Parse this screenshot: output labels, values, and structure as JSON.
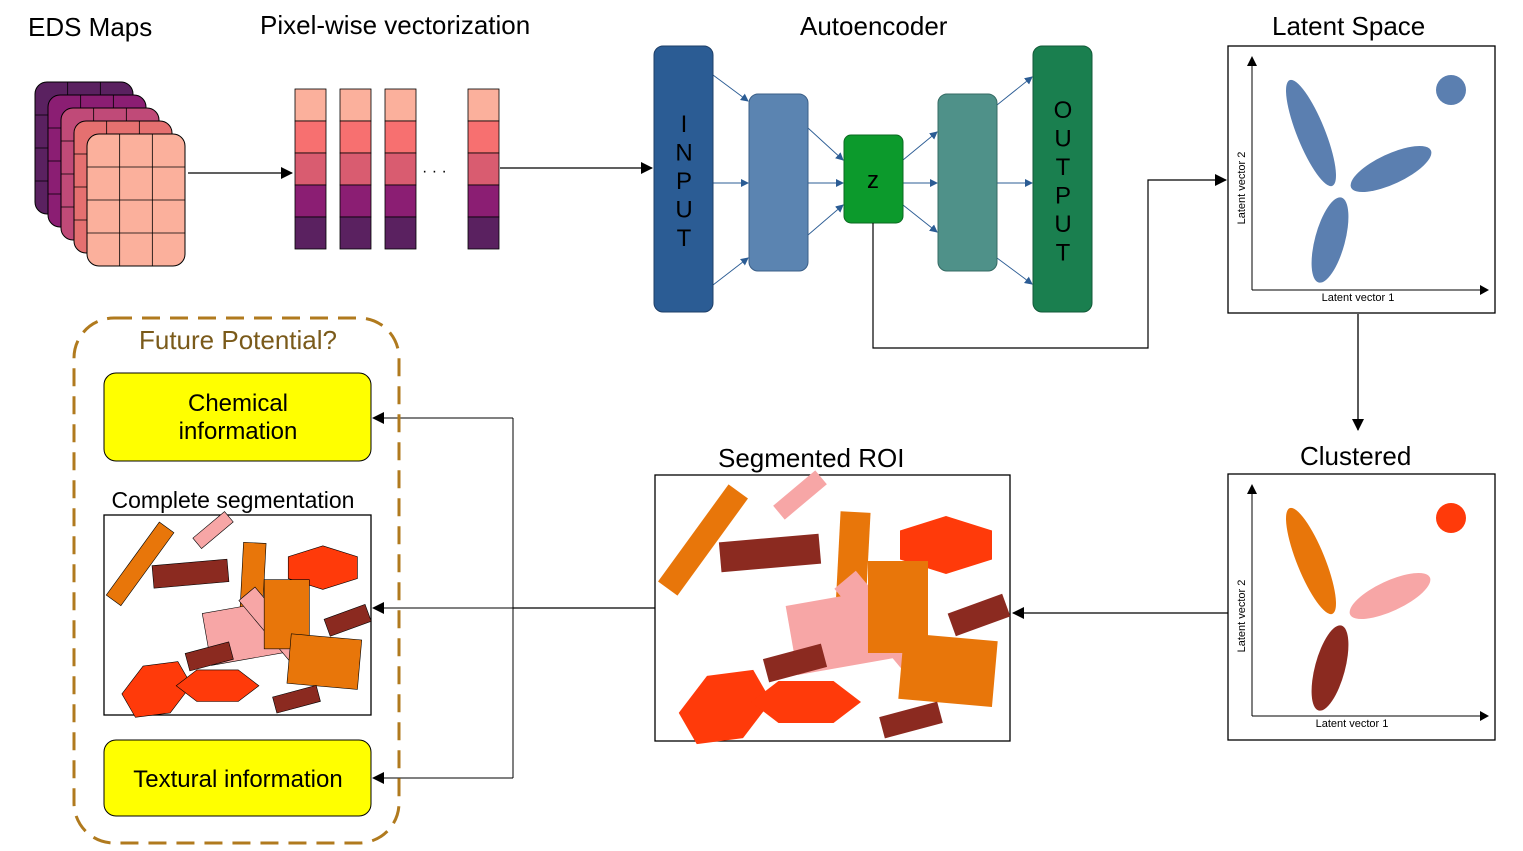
{
  "labels": {
    "eds_maps": "EDS Maps",
    "pixel_vectorization": "Pixel-wise vectorization",
    "autoencoder": "Autoencoder",
    "latent_space": "Latent Space",
    "clustered": "Clustered",
    "segmented_roi": "Segmented ROI",
    "future_potential": "Future Potential?",
    "complete_segmentation": "Complete segmentation",
    "ellipsis": "· · ·"
  },
  "autoencoder": {
    "input_letters": [
      "I",
      "N",
      "P",
      "U",
      "T"
    ],
    "output_letters": [
      "O",
      "U",
      "T",
      "P",
      "U",
      "T"
    ],
    "z_label": "z"
  },
  "plots": {
    "latent": {
      "xlabel": "Latent vector 1",
      "ylabel": "Latent vector 2"
    },
    "clustered": {
      "xlabel": "Latent vector 1",
      "ylabel": "Latent vector 2"
    }
  },
  "future_boxes": {
    "chemical_line1": "Chemical",
    "chemical_line2": "information",
    "textural": "Textural information"
  },
  "colors": {
    "input_layer": "#2b5c94",
    "hidden_layer": "#5b84b1",
    "z_layer": "#0c9a2c",
    "hidden_out_layer": "#4f9189",
    "output_layer": "#1a7f4f",
    "latent_cluster": "#5b7fb0",
    "cluster_orange": "#e8760a",
    "cluster_pink": "#f7a6a6",
    "cluster_maroon": "#8b2a20",
    "cluster_red": "#ff3a0a",
    "future_border": "#b07a1e",
    "future_title": "#7a5a1a",
    "highlight_box": "#ffff00",
    "map_layers": [
      "#5a2160",
      "#8b1e73",
      "#c04a78",
      "#e57070",
      "#fbb09c"
    ]
  }
}
